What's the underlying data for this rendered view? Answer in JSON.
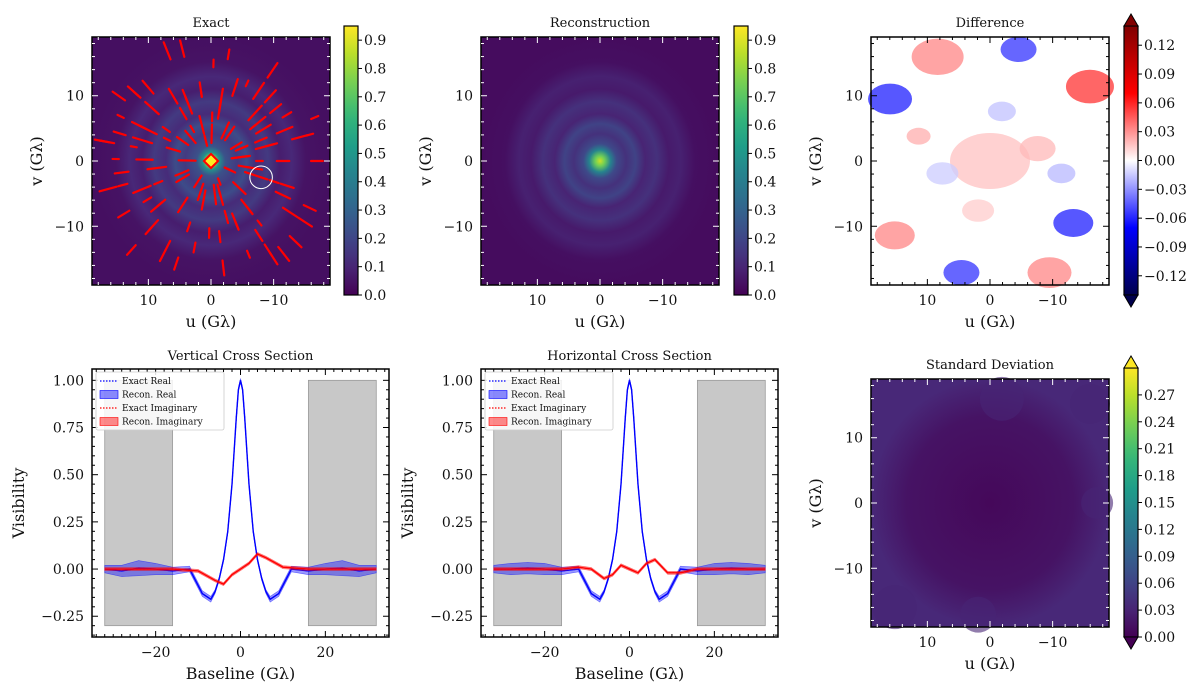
{
  "chart_data": [
    {
      "type": "heatmap",
      "title": "Exact",
      "xlabel": "u (Gλ)",
      "ylabel": "v (Gλ)",
      "xlim": [
        19,
        -19
      ],
      "ylim": [
        -19,
        19
      ],
      "xticks": [
        10,
        0,
        -10
      ],
      "xtick_labels": [
        "10",
        "0",
        "−10"
      ],
      "yticks": [
        10,
        0,
        -10
      ],
      "ytick_labels": [
        "10",
        "0",
        "−10"
      ],
      "colormap": "viridis",
      "colorbar": {
        "min": 0.0,
        "max": 0.95,
        "ticks": [
          0.0,
          0.1,
          0.2,
          0.3,
          0.4,
          0.5,
          0.6,
          0.7,
          0.8,
          0.9
        ],
        "tick_labels": [
          "0.0",
          "0.1",
          "0.2",
          "0.3",
          "0.4",
          "0.5",
          "0.6",
          "0.7",
          "0.8",
          "0.9"
        ],
        "extend": "neither"
      },
      "overlay": "u-v coverage tracks (red)",
      "marker_circle": {
        "u": -8,
        "v": -2.5,
        "radius": 1.8
      }
    },
    {
      "type": "heatmap",
      "title": "Reconstruction",
      "xlabel": "u (Gλ)",
      "ylabel": "v (Gλ)",
      "xlim": [
        19,
        -19
      ],
      "ylim": [
        -19,
        19
      ],
      "xticks": [
        10,
        0,
        -10
      ],
      "xtick_labels": [
        "10",
        "0",
        "−10"
      ],
      "yticks": [
        10,
        0,
        -10
      ],
      "ytick_labels": [
        "10",
        "0",
        "−10"
      ],
      "colormap": "viridis",
      "colorbar": {
        "min": 0.0,
        "max": 0.95,
        "ticks": [
          0.0,
          0.1,
          0.2,
          0.3,
          0.4,
          0.5,
          0.6,
          0.7,
          0.8,
          0.9
        ],
        "tick_labels": [
          "0.0",
          "0.1",
          "0.2",
          "0.3",
          "0.4",
          "0.5",
          "0.6",
          "0.7",
          "0.8",
          "0.9"
        ],
        "extend": "neither"
      }
    },
    {
      "type": "heatmap",
      "title": "Difference",
      "xlabel": "u (Gλ)",
      "ylabel": "v (Gλ)",
      "xlim": [
        19,
        -19
      ],
      "ylim": [
        -19,
        19
      ],
      "xticks": [
        10,
        0,
        -10
      ],
      "xtick_labels": [
        "10",
        "0",
        "−10"
      ],
      "yticks": [
        10,
        0,
        -10
      ],
      "ytick_labels": [
        "10",
        "0",
        "−10"
      ],
      "colormap": "seismic",
      "colorbar": {
        "min": -0.14,
        "max": 0.14,
        "ticks": [
          -0.12,
          -0.09,
          -0.06,
          -0.03,
          0.0,
          0.03,
          0.06,
          0.09,
          0.12
        ],
        "tick_labels": [
          "−0.12",
          "−0.09",
          "−0.06",
          "−0.03",
          "0.00",
          "0.03",
          "0.06",
          "0.09",
          "0.12"
        ],
        "extend": "both"
      }
    },
    {
      "type": "line",
      "title": "Vertical Cross Section",
      "xlabel": "Baseline (Gλ)",
      "ylabel": "Visibility",
      "xlim": [
        -35,
        35
      ],
      "ylim": [
        -0.36,
        1.06
      ],
      "xticks": [
        -20,
        0,
        20
      ],
      "xtick_labels": [
        "−20",
        "0",
        "20"
      ],
      "yticks": [
        -0.25,
        0.0,
        0.25,
        0.5,
        0.75,
        1.0
      ],
      "ytick_labels": [
        "−0.25",
        "0.00",
        "0.25",
        "0.50",
        "0.75",
        "1.00"
      ],
      "shaded_regions": [
        [
          -32,
          -16
        ],
        [
          16,
          32
        ]
      ],
      "shaded_y": [
        -0.3,
        1.0
      ],
      "legend": [
        "Exact Real",
        "Recon.  Real",
        "Exact Imaginary",
        "Recon.  Imaginary"
      ],
      "legend_location": "upper-left",
      "series": [
        {
          "name": "Exact Real",
          "style": "dotted",
          "color": "#0000ff",
          "x": [
            -32,
            -28,
            -24,
            -20,
            -16,
            -12,
            -9,
            -7,
            -6,
            -5,
            -4,
            -3,
            -2,
            -1,
            -0.5,
            0,
            0.5,
            1,
            2,
            3,
            4,
            5,
            6,
            7,
            9,
            12,
            16,
            20,
            24,
            28,
            32
          ],
          "y": [
            0.0,
            -0.01,
            0.005,
            0.0,
            -0.01,
            0.0,
            -0.13,
            -0.16,
            -0.12,
            -0.05,
            0.05,
            0.2,
            0.45,
            0.8,
            0.95,
            1.0,
            0.95,
            0.8,
            0.45,
            0.2,
            0.05,
            -0.05,
            -0.12,
            -0.16,
            -0.13,
            0.0,
            -0.01,
            0.0,
            0.005,
            -0.01,
            0.0
          ]
        },
        {
          "name": "Recon.  Real",
          "style": "band",
          "color": "#0000ff",
          "x": [
            -32,
            -28,
            -24,
            -20,
            -16,
            -12,
            -9,
            -7,
            -6,
            -5,
            -4,
            -3,
            -2,
            -1,
            -0.5,
            0,
            0.5,
            1,
            2,
            3,
            4,
            5,
            6,
            7,
            9,
            12,
            16,
            20,
            24,
            28,
            32
          ],
          "y": [
            0.0,
            -0.01,
            0.005,
            0.0,
            -0.01,
            0.0,
            -0.13,
            -0.16,
            -0.12,
            -0.05,
            0.05,
            0.2,
            0.45,
            0.8,
            0.95,
            1.0,
            0.95,
            0.8,
            0.45,
            0.2,
            0.05,
            -0.05,
            -0.12,
            -0.16,
            -0.13,
            0.0,
            -0.01,
            0.0,
            0.005,
            -0.01,
            0.0
          ],
          "err": [
            0.02,
            0.03,
            0.04,
            0.03,
            0.02,
            0.015,
            0.015,
            0.015,
            0.01,
            0.01,
            0.01,
            0.01,
            0.01,
            0.01,
            0.01,
            0.01,
            0.01,
            0.01,
            0.01,
            0.01,
            0.01,
            0.01,
            0.01,
            0.015,
            0.015,
            0.015,
            0.02,
            0.03,
            0.04,
            0.03,
            0.02
          ]
        },
        {
          "name": "Exact Imaginary",
          "style": "dotted",
          "color": "#ff0000",
          "x": [
            -32,
            -24,
            -16,
            -10,
            -6,
            -4,
            -2,
            0,
            2,
            4,
            6,
            10,
            16,
            24,
            32
          ],
          "y": [
            0.0,
            0.0,
            0.0,
            -0.01,
            -0.06,
            -0.08,
            -0.03,
            0.0,
            0.03,
            0.08,
            0.06,
            0.01,
            0.0,
            0.0,
            0.0
          ]
        },
        {
          "name": "Recon.  Imaginary",
          "style": "band",
          "color": "#ff0000",
          "x": [
            -32,
            -24,
            -16,
            -10,
            -6,
            -4,
            -2,
            0,
            2,
            4,
            6,
            10,
            16,
            24,
            32
          ],
          "y": [
            0.0,
            0.0,
            0.0,
            -0.01,
            -0.06,
            -0.08,
            -0.03,
            0.0,
            0.03,
            0.08,
            0.06,
            0.01,
            0.0,
            0.0,
            0.0
          ],
          "err": [
            0.008,
            0.008,
            0.008,
            0.008,
            0.008,
            0.008,
            0.008,
            0.008,
            0.008,
            0.008,
            0.008,
            0.008,
            0.008,
            0.008,
            0.008
          ]
        }
      ]
    },
    {
      "type": "line",
      "title": "Horizontal Cross Section",
      "xlabel": "Baseline (Gλ)",
      "ylabel": "Visibility",
      "xlim": [
        -35,
        35
      ],
      "ylim": [
        -0.36,
        1.06
      ],
      "xticks": [
        -20,
        0,
        20
      ],
      "xtick_labels": [
        "−20",
        "0",
        "20"
      ],
      "yticks": [
        -0.25,
        0.0,
        0.25,
        0.5,
        0.75,
        1.0
      ],
      "ytick_labels": [
        "−0.25",
        "0.00",
        "0.25",
        "0.50",
        "0.75",
        "1.00"
      ],
      "shaded_regions": [
        [
          -32,
          -16
        ],
        [
          16,
          32
        ]
      ],
      "shaded_y": [
        -0.3,
        1.0
      ],
      "legend": [
        "Exact Real",
        "Recon.  Real",
        "Exact Imaginary",
        "Recon.  Imaginary"
      ],
      "legend_location": "upper-left",
      "series": [
        {
          "name": "Exact Real",
          "style": "dotted",
          "color": "#0000ff",
          "x": [
            -32,
            -28,
            -24,
            -20,
            -16,
            -12,
            -9,
            -7,
            -6,
            -5,
            -4,
            -3,
            -2,
            -1,
            -0.5,
            0,
            0.5,
            1,
            2,
            3,
            4,
            5,
            6,
            7,
            9,
            12,
            16,
            20,
            24,
            28,
            32
          ],
          "y": [
            0.0,
            0.0,
            0.005,
            0.0,
            -0.01,
            0.0,
            -0.13,
            -0.16,
            -0.12,
            -0.05,
            0.05,
            0.2,
            0.45,
            0.8,
            0.95,
            1.0,
            0.95,
            0.8,
            0.45,
            0.2,
            0.05,
            -0.05,
            -0.12,
            -0.16,
            -0.13,
            0.0,
            -0.01,
            0.0,
            0.005,
            0.0,
            0.0
          ]
        },
        {
          "name": "Recon.  Real",
          "style": "band",
          "color": "#0000ff",
          "x": [
            -32,
            -28,
            -24,
            -20,
            -16,
            -12,
            -9,
            -7,
            -6,
            -5,
            -4,
            -3,
            -2,
            -1,
            -0.5,
            0,
            0.5,
            1,
            2,
            3,
            4,
            5,
            6,
            7,
            9,
            12,
            16,
            20,
            24,
            28,
            32
          ],
          "y": [
            0.0,
            0.0,
            0.005,
            0.0,
            -0.01,
            0.0,
            -0.13,
            -0.16,
            -0.12,
            -0.05,
            0.05,
            0.2,
            0.45,
            0.8,
            0.95,
            1.0,
            0.95,
            0.8,
            0.45,
            0.2,
            0.05,
            -0.05,
            -0.12,
            -0.16,
            -0.13,
            0.0,
            -0.01,
            0.0,
            0.005,
            0.0,
            0.0
          ],
          "err": [
            0.02,
            0.03,
            0.03,
            0.03,
            0.02,
            0.015,
            0.015,
            0.015,
            0.01,
            0.01,
            0.01,
            0.01,
            0.01,
            0.01,
            0.01,
            0.01,
            0.01,
            0.01,
            0.01,
            0.01,
            0.01,
            0.01,
            0.01,
            0.015,
            0.015,
            0.015,
            0.02,
            0.03,
            0.03,
            0.03,
            0.02
          ]
        },
        {
          "name": "Exact Imaginary",
          "style": "dotted",
          "color": "#ff0000",
          "x": [
            -32,
            -24,
            -16,
            -12,
            -9,
            -6,
            -4,
            -2,
            0,
            2,
            4,
            6,
            9,
            12,
            16,
            24,
            32
          ],
          "y": [
            0.0,
            0.0,
            0.0,
            0.01,
            0.0,
            -0.05,
            -0.03,
            0.02,
            0.0,
            -0.02,
            0.03,
            0.05,
            -0.02,
            -0.02,
            0.0,
            0.0,
            0.0
          ]
        },
        {
          "name": "Recon.  Imaginary",
          "style": "band",
          "color": "#ff0000",
          "x": [
            -32,
            -24,
            -16,
            -12,
            -9,
            -6,
            -4,
            -2,
            0,
            2,
            4,
            6,
            9,
            12,
            16,
            24,
            32
          ],
          "y": [
            0.0,
            0.0,
            0.0,
            0.01,
            0.0,
            -0.05,
            -0.03,
            0.02,
            0.0,
            -0.02,
            0.03,
            0.05,
            -0.02,
            -0.02,
            0.0,
            0.0,
            0.0
          ],
          "err": [
            0.008,
            0.008,
            0.008,
            0.008,
            0.008,
            0.008,
            0.008,
            0.008,
            0.008,
            0.008,
            0.008,
            0.008,
            0.008,
            0.008,
            0.008,
            0.008,
            0.008
          ]
        }
      ]
    },
    {
      "type": "heatmap",
      "title": "Standard Deviation",
      "xlabel": "u (Gλ)",
      "ylabel": "v (Gλ)",
      "xlim": [
        19,
        -19
      ],
      "ylim": [
        -19,
        19
      ],
      "xticks": [
        10,
        0,
        -10
      ],
      "xtick_labels": [
        "10",
        "0",
        "−10"
      ],
      "yticks": [
        10,
        0,
        -10
      ],
      "ytick_labels": [
        "10",
        "0",
        "−10"
      ],
      "colormap": "viridis",
      "colorbar": {
        "min": 0.0,
        "max": 0.3,
        "ticks": [
          0.0,
          0.03,
          0.06,
          0.09,
          0.12,
          0.15,
          0.18,
          0.21,
          0.24,
          0.27
        ],
        "tick_labels": [
          "0.00",
          "0.03",
          "0.06",
          "0.09",
          "0.12",
          "0.15",
          "0.18",
          "0.21",
          "0.24",
          "0.27"
        ],
        "extend": "both"
      }
    }
  ]
}
